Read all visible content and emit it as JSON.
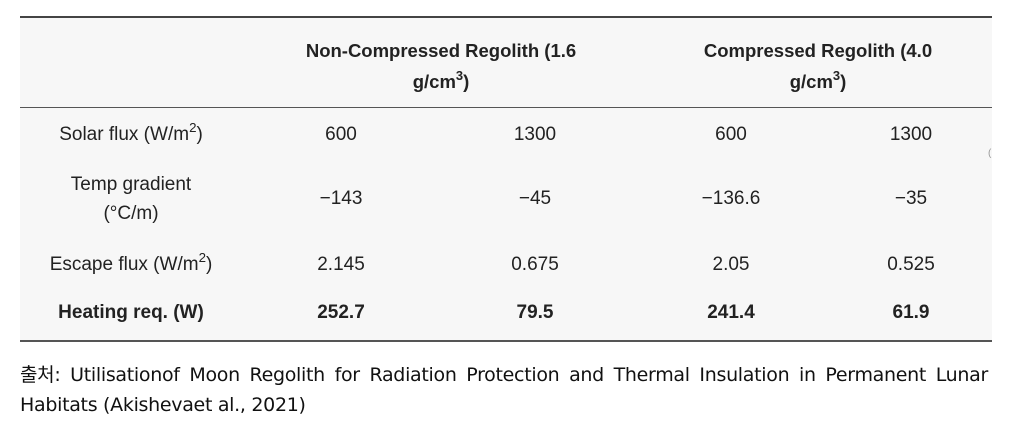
{
  "table": {
    "header": {
      "group1_text": "Non-Compressed Regolith (1.6",
      "group1_unit_pre": "g/cm",
      "group1_unit_sup": "3",
      "group1_unit_post": ")",
      "group2_text": "Compressed Regolith (4.0",
      "group2_unit_pre": "g/cm",
      "group2_unit_sup": "3",
      "group2_unit_post": ")"
    },
    "rows": [
      {
        "label_pre": "Solar flux (W/m",
        "label_sup": "2",
        "label_post": ")",
        "values": [
          "600",
          "1300",
          "600",
          "1300"
        ]
      },
      {
        "label_line1": "Temp gradient",
        "label_line2": "(°C/m)",
        "values": [
          "−143",
          "−45",
          "−136.6",
          "−35"
        ]
      },
      {
        "label_pre": "Escape flux (W/m",
        "label_sup": "2",
        "label_post": ")",
        "values": [
          "2.145",
          "0.675",
          "2.05",
          "0.525"
        ]
      },
      {
        "label": "Heating req. (W)",
        "values": [
          "252.7",
          "79.5",
          "241.4",
          "61.9"
        ]
      }
    ]
  },
  "caption": "출처: Utilisationof Moon Regolith for Radiation Protection and Thermal Insulation in Permanent Lunar Habitats (Akishevaet al., 2021)"
}
